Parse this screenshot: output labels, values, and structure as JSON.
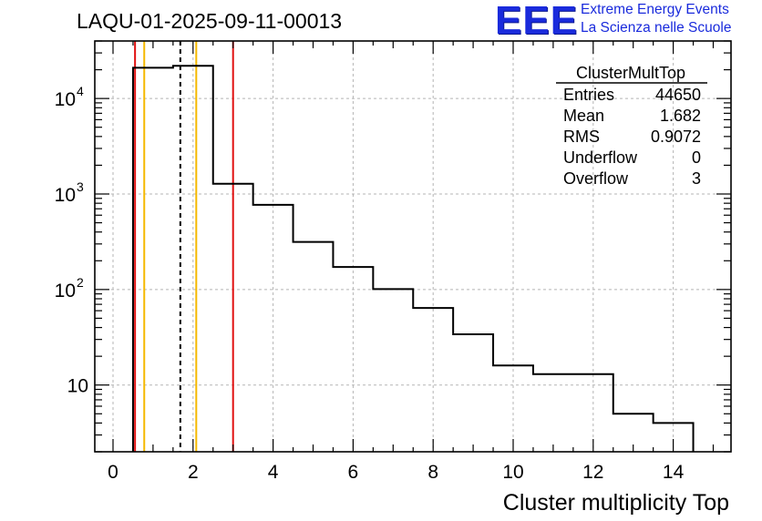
{
  "header": {
    "title": "LAQU-01-2025-09-11-00013"
  },
  "logo": {
    "mark": "EEE",
    "line1": "Extreme Energy Events",
    "line2": "La Scienza nelle Scuole",
    "color": "#1a2bdc"
  },
  "stats_box": {
    "title": "ClusterMultTop",
    "rows": [
      {
        "label": "Entries",
        "value": "44650"
      },
      {
        "label": "Mean",
        "value": "1.682"
      },
      {
        "label": "RMS",
        "value": "0.9072"
      },
      {
        "label": "Underflow",
        "value": "0"
      },
      {
        "label": "Overflow",
        "value": "3"
      }
    ]
  },
  "chart_data": {
    "type": "histogram",
    "title": "LAQU-01-2025-09-11-00013",
    "xlabel": "Cluster multiplicity Top",
    "ylabel": "",
    "yscale": "log",
    "xlim": [
      -0.5,
      15
    ],
    "ylim": [
      2.0,
      40000
    ],
    "grid": true,
    "x_ticks": [
      0,
      2,
      4,
      6,
      8,
      10,
      12,
      14
    ],
    "x_tick_labels": [
      "0",
      "2",
      "4",
      "6",
      "8",
      "10",
      "12",
      "14"
    ],
    "y_ticks": [
      10,
      100,
      1000,
      10000
    ],
    "y_tick_labels": [
      "10",
      "10",
      "10",
      "10"
    ],
    "y_tick_exponents": [
      "",
      "2",
      "3",
      "4"
    ],
    "bins": [
      {
        "low": 0.5,
        "high": 1.5,
        "value": 21000
      },
      {
        "low": 1.5,
        "high": 2.5,
        "value": 22000
      },
      {
        "low": 2.5,
        "high": 3.5,
        "value": 1280
      },
      {
        "low": 3.5,
        "high": 4.5,
        "value": 770
      },
      {
        "low": 4.5,
        "high": 5.5,
        "value": 315
      },
      {
        "low": 5.5,
        "high": 6.5,
        "value": 172
      },
      {
        "low": 6.5,
        "high": 7.5,
        "value": 101
      },
      {
        "low": 7.5,
        "high": 8.5,
        "value": 64
      },
      {
        "low": 8.5,
        "high": 9.5,
        "value": 34
      },
      {
        "low": 9.5,
        "high": 10.5,
        "value": 16
      },
      {
        "low": 10.5,
        "high": 12.5,
        "value": 13
      },
      {
        "low": 12.5,
        "high": 13.5,
        "value": 5
      },
      {
        "low": 13.5,
        "high": 14.5,
        "value": 4
      }
    ],
    "vertical_lines": [
      {
        "x": 0.55,
        "color": "#e01010",
        "style": "solid",
        "meaning": "red-limit-left"
      },
      {
        "x": 0.78,
        "color": "#f5b800",
        "style": "solid",
        "meaning": "orange-limit-left"
      },
      {
        "x": 1.682,
        "color": "#000000",
        "style": "dashed",
        "meaning": "mean"
      },
      {
        "x": 2.08,
        "color": "#f5b800",
        "style": "solid",
        "meaning": "orange-limit-right"
      },
      {
        "x": 3.0,
        "color": "#e01010",
        "style": "solid",
        "meaning": "red-limit-right"
      }
    ]
  }
}
